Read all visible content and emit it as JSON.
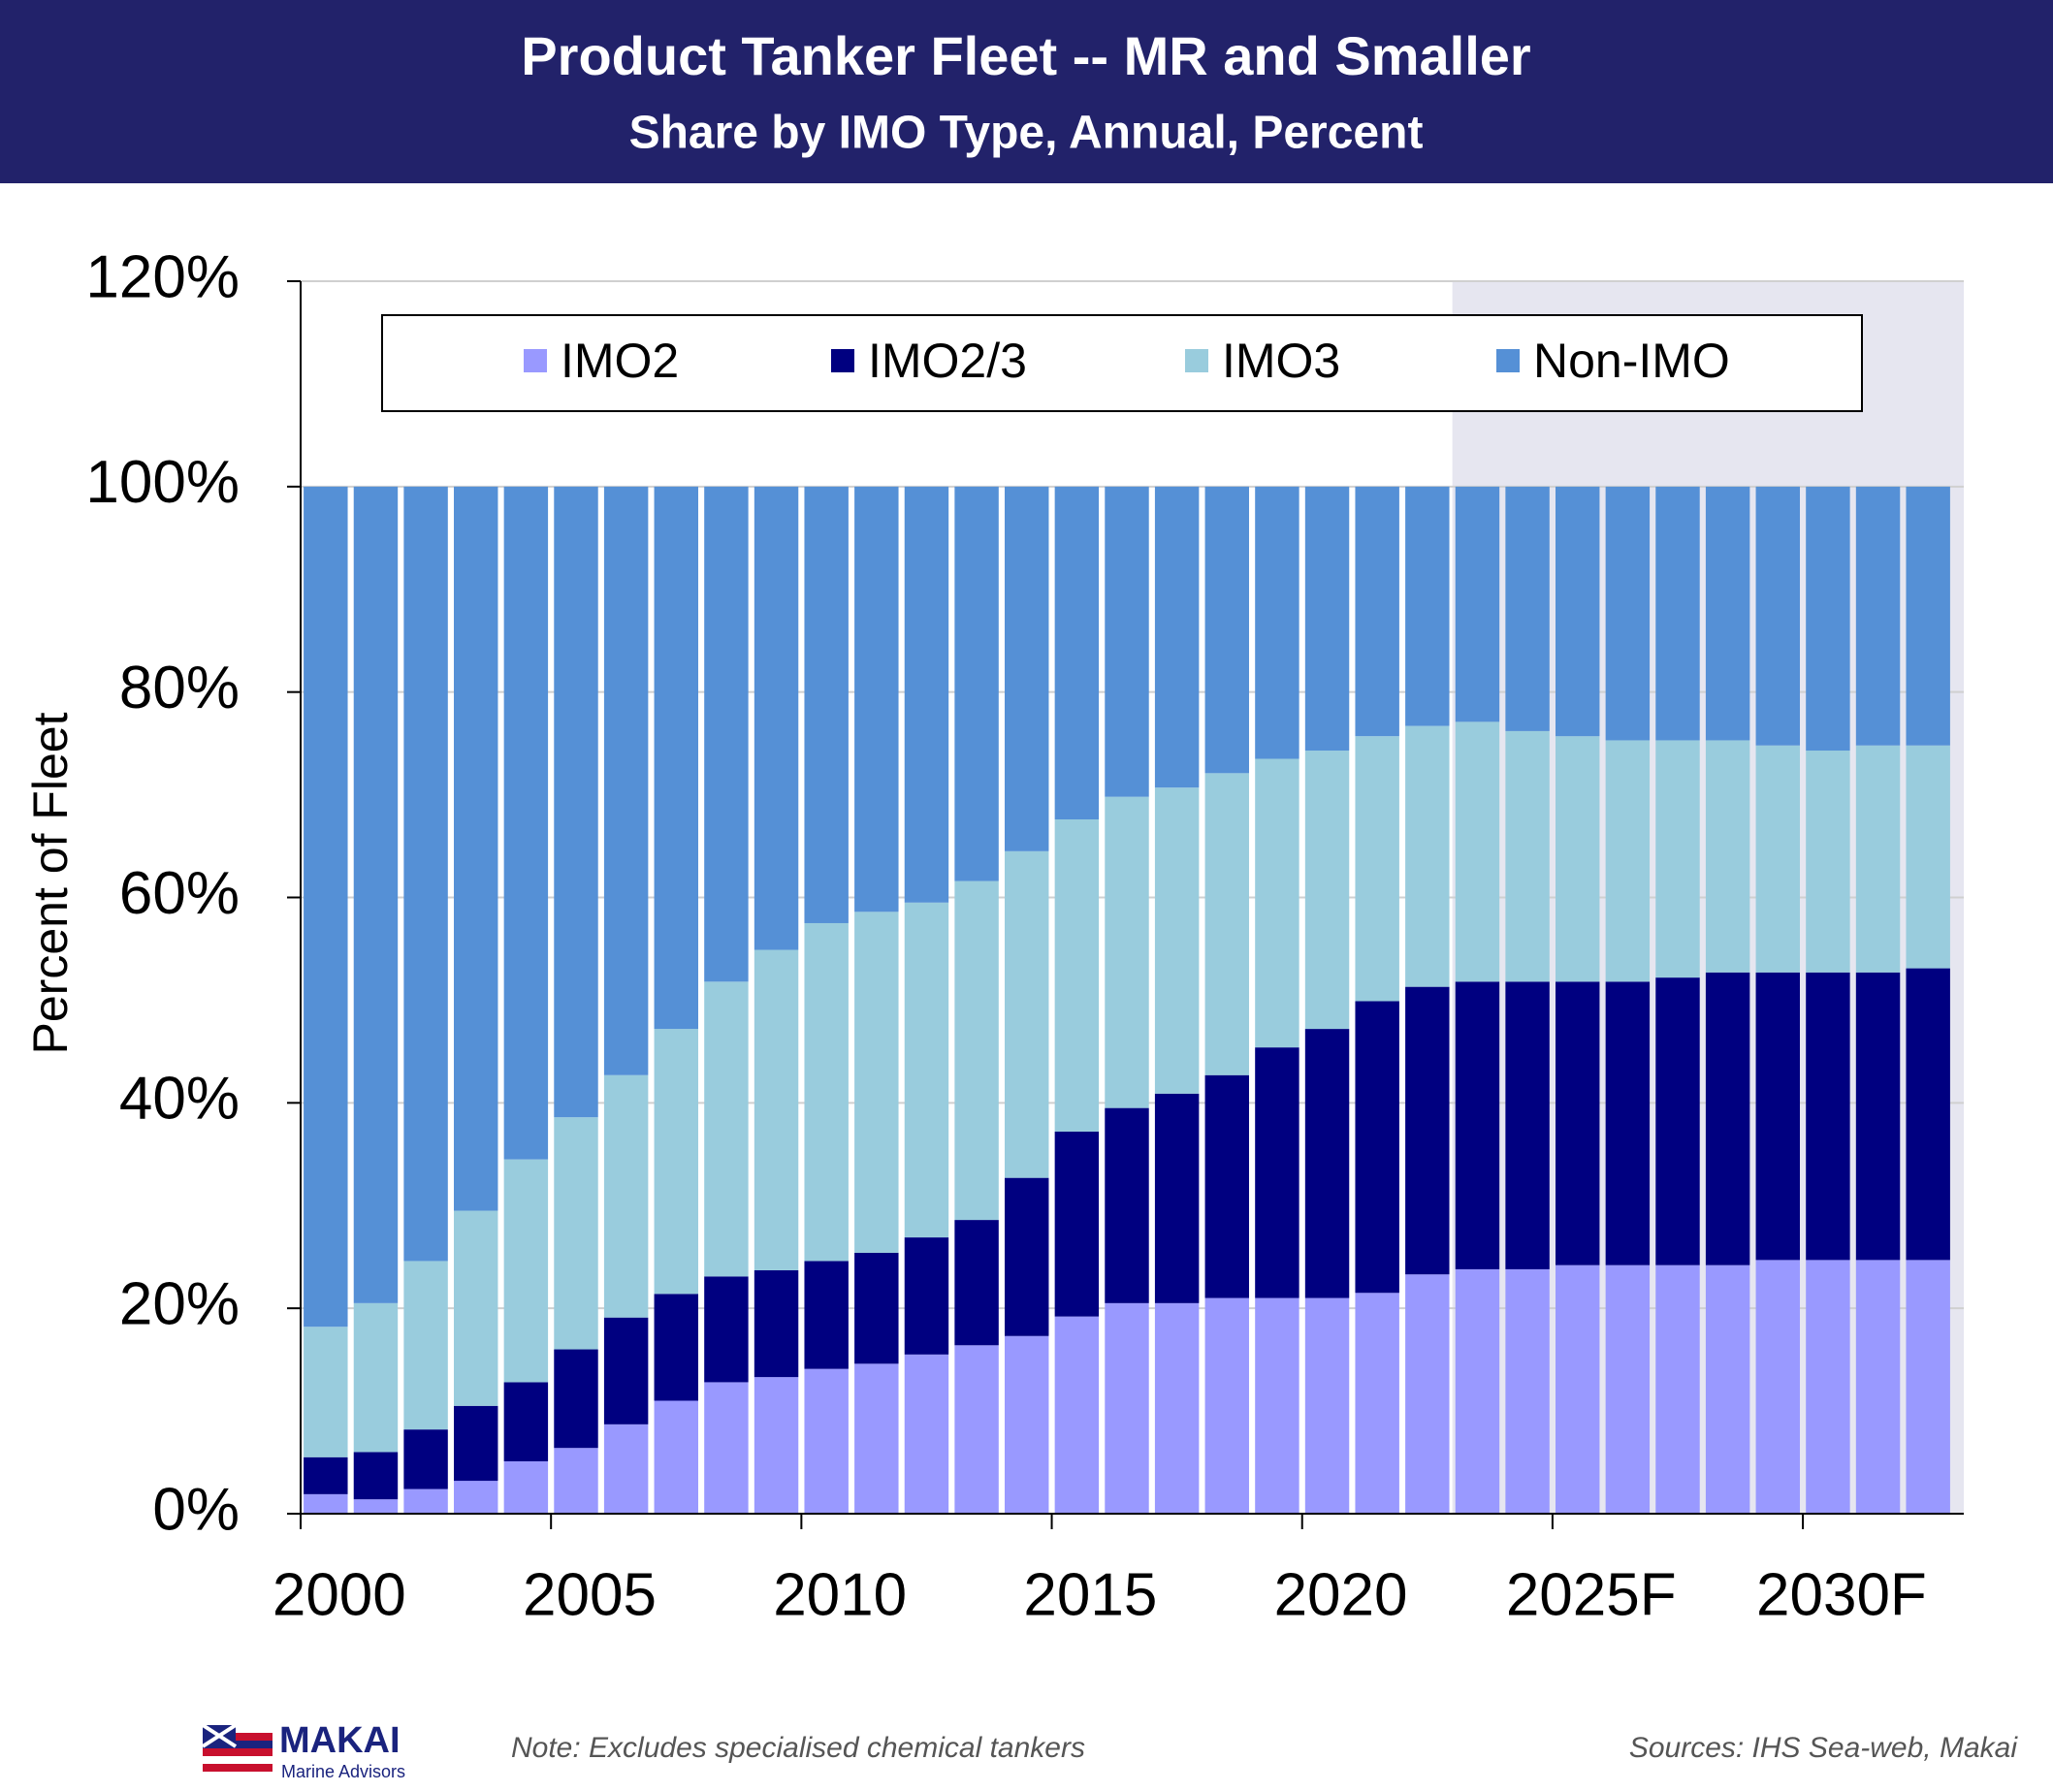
{
  "chart_data": {
    "type": "stacked_bar",
    "title": "Product Tanker Fleet -- MR and Smaller",
    "subtitle": "Share by IMO Type, Annual, Percent",
    "y_label": "Percent of Fleet",
    "categories": [
      "2000",
      null,
      null,
      null,
      null,
      "2005",
      null,
      null,
      null,
      null,
      "2010",
      null,
      null,
      null,
      null,
      "2015",
      null,
      null,
      null,
      null,
      "2020",
      null,
      null,
      null,
      null,
      "2025F",
      null,
      null,
      null,
      null,
      "2030F",
      null,
      null
    ],
    "series": [
      {
        "name": "IMO2",
        "color": "#9999ff",
        "values": [
          1.9,
          1.4,
          2.4,
          3.2,
          5.1,
          6.4,
          8.7,
          11.0,
          12.8,
          13.3,
          14.1,
          14.6,
          15.5,
          16.4,
          17.3,
          19.2,
          20.5,
          20.5,
          21.0,
          21.0,
          21.0,
          21.5,
          23.3,
          23.8,
          23.8,
          24.2,
          24.2,
          24.2,
          24.2,
          24.7,
          24.7,
          24.7,
          24.7
        ]
      },
      {
        "name": "IMO2/3",
        "color": "#000080",
        "values": [
          3.6,
          4.6,
          5.8,
          7.3,
          7.7,
          9.6,
          10.4,
          10.4,
          10.3,
          10.4,
          10.5,
          10.8,
          11.4,
          12.2,
          15.4,
          18.0,
          19.0,
          20.4,
          21.7,
          24.4,
          26.2,
          28.4,
          28.0,
          28.0,
          28.0,
          27.6,
          27.6,
          28.0,
          28.5,
          28.0,
          28.0,
          28.0,
          28.4
        ]
      },
      {
        "name": "IMO3",
        "color": "#99ccdd",
        "values": [
          12.7,
          14.5,
          16.4,
          19.0,
          21.7,
          22.6,
          23.6,
          25.8,
          28.7,
          31.2,
          32.9,
          33.2,
          32.6,
          33.0,
          31.8,
          30.4,
          30.3,
          29.8,
          29.4,
          28.1,
          27.1,
          25.8,
          25.4,
          25.3,
          24.4,
          23.9,
          23.5,
          23.1,
          22.6,
          22.1,
          21.6,
          22.1,
          21.7
        ]
      },
      {
        "name": "Non-IMO",
        "color": "#5590d6",
        "values": [
          81.8,
          79.5,
          75.4,
          70.5,
          65.5,
          61.4,
          57.3,
          52.8,
          48.2,
          45.1,
          42.5,
          41.4,
          40.5,
          38.4,
          35.5,
          32.4,
          30.2,
          29.3,
          27.9,
          26.5,
          25.7,
          24.3,
          23.3,
          22.9,
          23.8,
          24.3,
          24.7,
          24.7,
          24.7,
          25.2,
          25.7,
          25.2,
          25.2
        ]
      }
    ],
    "ylim": [
      0,
      120
    ],
    "yticks": [
      {
        "value": 0,
        "label": "0%"
      },
      {
        "value": 20,
        "label": "20%"
      },
      {
        "value": 40,
        "label": "40%"
      },
      {
        "value": 60,
        "label": "60%"
      },
      {
        "value": 80,
        "label": "80%"
      },
      {
        "value": 100,
        "label": "100%"
      },
      {
        "value": 120,
        "label": "120%"
      }
    ],
    "grid": true,
    "legend": "top",
    "shade_start": 23,
    "shade_color": "#e6e6f0"
  },
  "footer": {
    "logo": "MAKAI",
    "logo_sub": "Marine Advisors",
    "note": "Note: Excludes specialised chemical tankers",
    "sources": "Sources: IHS Sea-web, Makai"
  }
}
